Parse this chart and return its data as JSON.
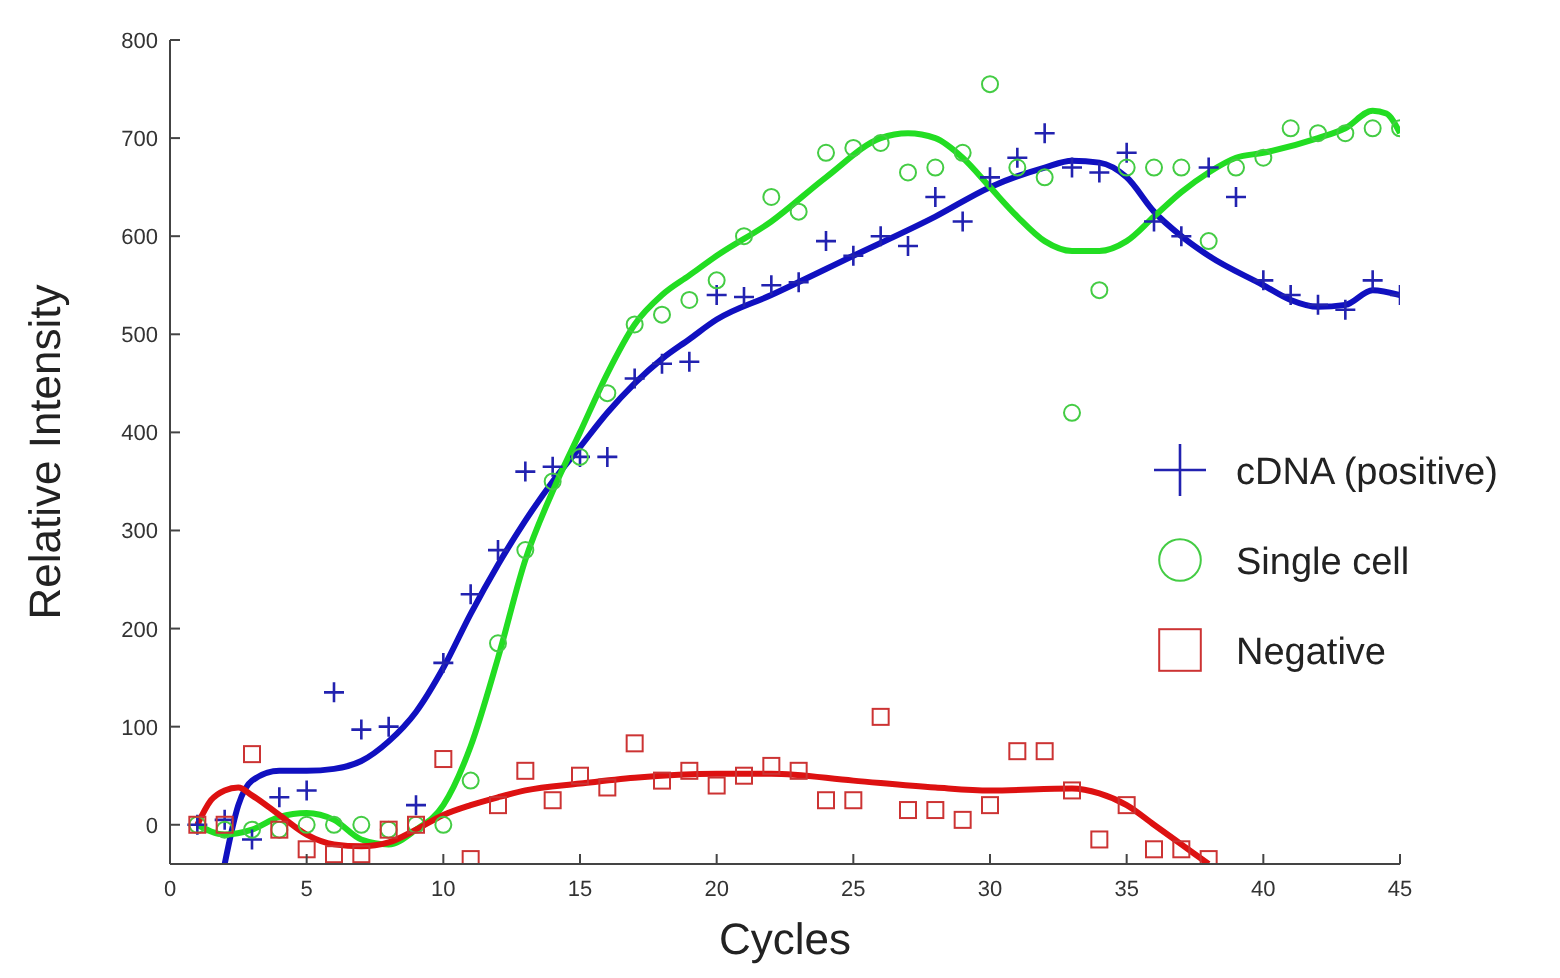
{
  "chart_data": {
    "type": "scatter",
    "xlabel": "Cycles",
    "ylabel": "Relative Intensity",
    "xlim": [
      0,
      45
    ],
    "xticks": [
      0,
      5,
      10,
      15,
      20,
      25,
      30,
      35,
      40,
      45
    ],
    "ylim": [
      -40,
      800
    ],
    "yticks": [
      0,
      100,
      200,
      300,
      400,
      500,
      600,
      700,
      800
    ],
    "grid": false,
    "legend": "right",
    "series": [
      {
        "name": "cDNA (positive)",
        "color": "#2222b0",
        "marker": "cross",
        "x": [
          1,
          2,
          3,
          4,
          5,
          6,
          7,
          8,
          9,
          10,
          11,
          12,
          13,
          14,
          15,
          16,
          17,
          18,
          19,
          20,
          21,
          22,
          23,
          24,
          25,
          26,
          27,
          28,
          29,
          30,
          31,
          32,
          33,
          34,
          35,
          36,
          37,
          38,
          39,
          40,
          41,
          42,
          43,
          44,
          45
        ],
        "values": [
          0,
          5,
          -15,
          28,
          35,
          135,
          97,
          100,
          20,
          165,
          235,
          280,
          360,
          365,
          375,
          375,
          455,
          470,
          472,
          540,
          538,
          550,
          553,
          595,
          580,
          600,
          590,
          640,
          615,
          660,
          680,
          705,
          670,
          665,
          685,
          615,
          600,
          670,
          640,
          555,
          540,
          530,
          525,
          555,
          540
        ]
      },
      {
        "name": "Single cell",
        "color": "#44cc44",
        "marker": "circle",
        "x": [
          1,
          2,
          3,
          4,
          5,
          6,
          7,
          8,
          9,
          10,
          11,
          12,
          13,
          14,
          15,
          16,
          17,
          18,
          19,
          20,
          21,
          22,
          23,
          24,
          25,
          26,
          27,
          28,
          29,
          30,
          31,
          32,
          33,
          34,
          35,
          36,
          37,
          38,
          39,
          40,
          41,
          42,
          43,
          44,
          45
        ],
        "values": [
          0,
          -5,
          -5,
          -5,
          0,
          0,
          0,
          -5,
          0,
          0,
          45,
          185,
          280,
          350,
          375,
          440,
          510,
          520,
          535,
          555,
          600,
          640,
          625,
          685,
          690,
          695,
          665,
          670,
          685,
          755,
          670,
          660,
          420,
          545,
          670,
          670,
          670,
          595,
          670,
          680,
          710,
          705,
          705,
          710,
          710
        ]
      },
      {
        "name": "Negative",
        "color": "#cc3333",
        "marker": "square",
        "x": [
          1,
          2,
          3,
          4,
          5,
          6,
          7,
          8,
          9,
          10,
          11,
          12,
          13,
          14,
          15,
          16,
          17,
          18,
          19,
          20,
          21,
          22,
          23,
          24,
          25,
          26,
          27,
          28,
          29,
          30,
          31,
          32,
          33,
          34,
          35,
          36,
          37,
          38
        ],
        "values": [
          0,
          0,
          72,
          -5,
          -25,
          -30,
          -30,
          -5,
          0,
          67,
          -35,
          20,
          55,
          25,
          50,
          38,
          83,
          45,
          55,
          40,
          50,
          60,
          55,
          25,
          25,
          110,
          15,
          15,
          5,
          20,
          75,
          75,
          35,
          -15,
          20,
          -25,
          -25,
          -35
        ]
      },
      {
        "type": "line",
        "color": "#1010c0",
        "marker": "none",
        "x": [
          2,
          2.5,
          3,
          4,
          5,
          6,
          7,
          8,
          9,
          10,
          11,
          12,
          13,
          14,
          15,
          16,
          17,
          18,
          19,
          20,
          22,
          25,
          28,
          30,
          32,
          33,
          34,
          35,
          36,
          37,
          38,
          40,
          41,
          42,
          43,
          44,
          45
        ],
        "values": [
          -40,
          20,
          45,
          55,
          55,
          57,
          65,
          85,
          115,
          160,
          215,
          265,
          310,
          350,
          385,
          420,
          450,
          475,
          495,
          515,
          540,
          580,
          620,
          650,
          670,
          677,
          675,
          660,
          625,
          600,
          580,
          550,
          535,
          528,
          530,
          545,
          540
        ]
      },
      {
        "type": "line",
        "color": "#22dd22",
        "marker": "none",
        "x": [
          1,
          2,
          3,
          4,
          5,
          6,
          7,
          8,
          9,
          10,
          11,
          12,
          13,
          14,
          15,
          16,
          17,
          18,
          19,
          20,
          22,
          24,
          26,
          27,
          28,
          29,
          30,
          31,
          32,
          33,
          34,
          35,
          36,
          37,
          38,
          39,
          40,
          42,
          43,
          44,
          44.5,
          45
        ],
        "values": [
          0,
          -10,
          -5,
          8,
          12,
          5,
          -15,
          -20,
          -5,
          20,
          80,
          170,
          270,
          340,
          400,
          460,
          510,
          540,
          560,
          580,
          615,
          660,
          700,
          705,
          700,
          680,
          650,
          620,
          595,
          585,
          585,
          595,
          620,
          645,
          665,
          680,
          685,
          700,
          710,
          728,
          725,
          705
        ]
      },
      {
        "type": "line",
        "color": "#dd1111",
        "marker": "none",
        "x": [
          1,
          1.5,
          2,
          2.5,
          3,
          4,
          5,
          6,
          7,
          8,
          9,
          10,
          11,
          12,
          13,
          15,
          17,
          20,
          22,
          25,
          28,
          30,
          33,
          34,
          35,
          36,
          37,
          38
        ],
        "values": [
          0,
          25,
          35,
          38,
          30,
          10,
          -10,
          -20,
          -22,
          -18,
          -5,
          10,
          20,
          28,
          35,
          42,
          48,
          52,
          52,
          45,
          38,
          35,
          37,
          32,
          20,
          0,
          -20,
          -40
        ]
      }
    ]
  }
}
